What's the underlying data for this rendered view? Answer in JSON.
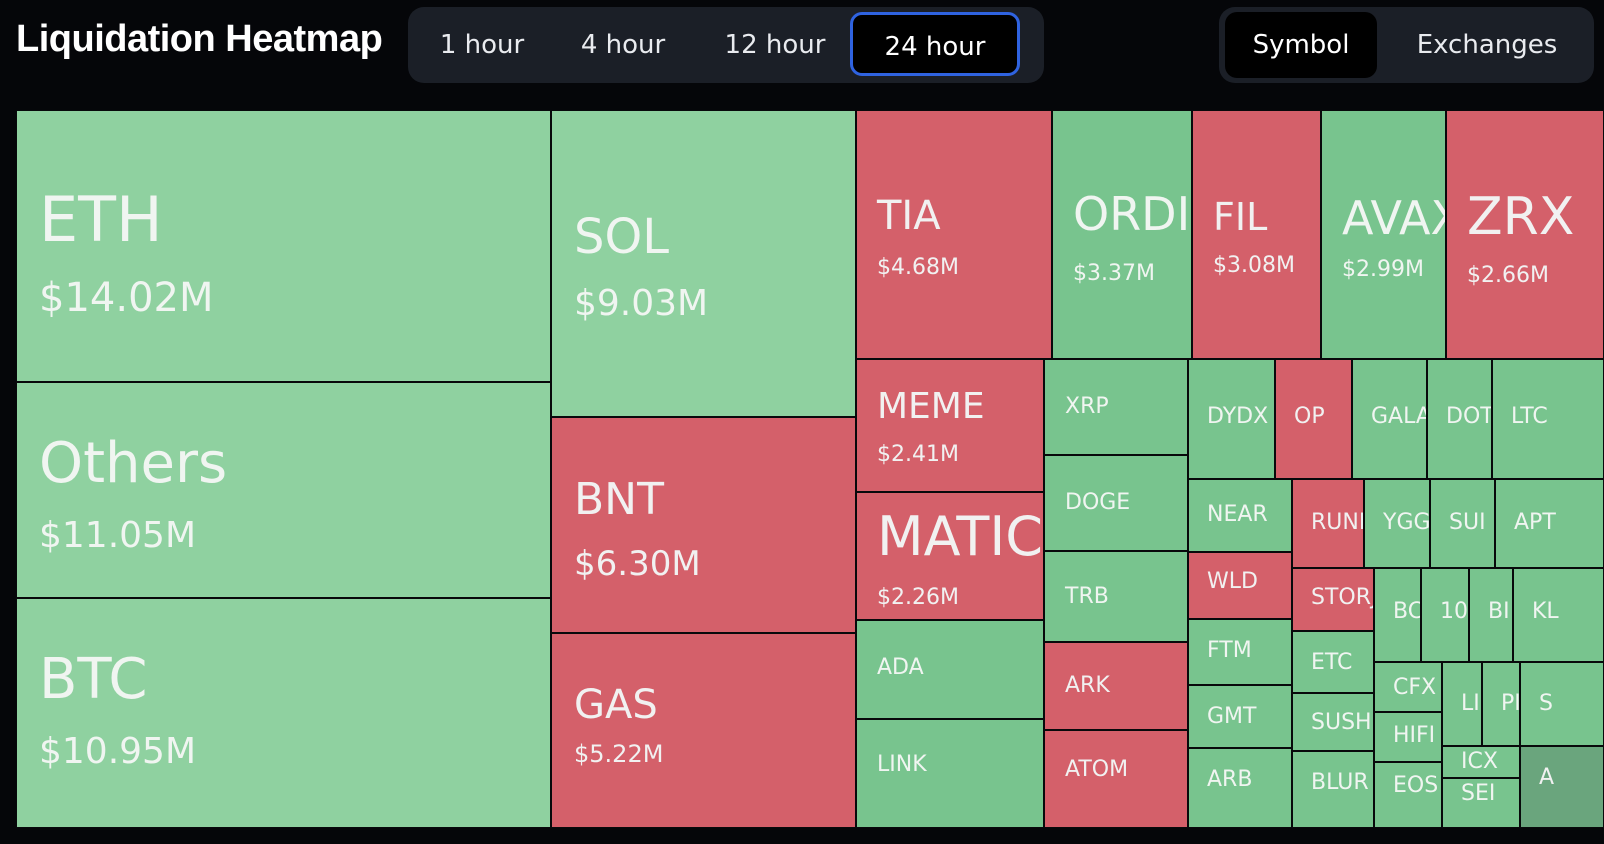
{
  "header": {
    "title": "Liquidation Heatmap",
    "timeframes": [
      {
        "label": "1 hour",
        "active": false
      },
      {
        "label": "4 hour",
        "active": false
      },
      {
        "label": "12 hour",
        "active": false
      },
      {
        "label": "24 hour",
        "active": true
      }
    ],
    "views": [
      {
        "label": "Symbol",
        "active": true
      },
      {
        "label": "Exchanges",
        "active": false
      }
    ]
  },
  "colors": {
    "long": "#8fd1a0",
    "long_small": "#78c48e",
    "short": "#d4606a",
    "active_border": "#2f63e0"
  },
  "heatmap": {
    "cells": [
      {
        "symbol": "ETH",
        "amount": "$14.02M",
        "side": "long"
      },
      {
        "symbol": "Others",
        "amount": "$11.05M",
        "side": "long"
      },
      {
        "symbol": "BTC",
        "amount": "$10.95M",
        "side": "long"
      },
      {
        "symbol": "SOL",
        "amount": "$9.03M",
        "side": "long"
      },
      {
        "symbol": "BNT",
        "amount": "$6.30M",
        "side": "short"
      },
      {
        "symbol": "GAS",
        "amount": "$5.22M",
        "side": "short"
      },
      {
        "symbol": "TIA",
        "amount": "$4.68M",
        "side": "short"
      },
      {
        "symbol": "ORDI",
        "amount": "$3.37M",
        "side": "long"
      },
      {
        "symbol": "FIL",
        "amount": "$3.08M",
        "side": "short"
      },
      {
        "symbol": "AVAX",
        "amount": "$2.99M",
        "side": "long"
      },
      {
        "symbol": "ZRX",
        "amount": "$2.66M",
        "side": "short"
      },
      {
        "symbol": "MEME",
        "amount": "$2.41M",
        "side": "short"
      },
      {
        "symbol": "MATIC",
        "amount": "$2.26M",
        "side": "short"
      },
      {
        "symbol": "ADA",
        "side": "long"
      },
      {
        "symbol": "LINK",
        "side": "long"
      },
      {
        "symbol": "XRP",
        "side": "long"
      },
      {
        "symbol": "DOGE",
        "side": "long"
      },
      {
        "symbol": "TRB",
        "side": "long"
      },
      {
        "symbol": "ARK",
        "side": "short"
      },
      {
        "symbol": "ATOM",
        "side": "short"
      },
      {
        "symbol": "DYDX",
        "side": "long"
      },
      {
        "symbol": "OP",
        "side": "short"
      },
      {
        "symbol": "GALA",
        "side": "long"
      },
      {
        "symbol": "DOT",
        "side": "long"
      },
      {
        "symbol": "LTC",
        "side": "long"
      },
      {
        "symbol": "NEAR",
        "side": "long"
      },
      {
        "symbol": "RUNE",
        "side": "short"
      },
      {
        "symbol": "YGG",
        "side": "long"
      },
      {
        "symbol": "SUI",
        "side": "long"
      },
      {
        "symbol": "APT",
        "side": "long"
      },
      {
        "symbol": "WLD",
        "side": "short"
      },
      {
        "symbol": "STORJ",
        "side": "short"
      },
      {
        "symbol": "BC",
        "side": "long"
      },
      {
        "symbol": "10",
        "side": "long"
      },
      {
        "symbol": "BI",
        "side": "long"
      },
      {
        "symbol": "KL",
        "side": "long"
      },
      {
        "symbol": "FTM",
        "side": "long"
      },
      {
        "symbol": "ETC",
        "side": "long"
      },
      {
        "symbol": "CFX",
        "side": "long"
      },
      {
        "symbol": "LI",
        "side": "long"
      },
      {
        "symbol": "PI",
        "side": "long"
      },
      {
        "symbol": "S",
        "side": "long"
      },
      {
        "symbol": "GMT",
        "side": "long"
      },
      {
        "symbol": "SUSHI",
        "side": "long"
      },
      {
        "symbol": "HIFI",
        "side": "long"
      },
      {
        "symbol": "ARB",
        "side": "long"
      },
      {
        "symbol": "BLUR",
        "side": "long"
      },
      {
        "symbol": "EOS",
        "side": "long"
      },
      {
        "symbol": "ICX",
        "side": "long"
      },
      {
        "symbol": "SEI",
        "side": "long"
      },
      {
        "symbol": "A",
        "side": "long"
      }
    ]
  }
}
